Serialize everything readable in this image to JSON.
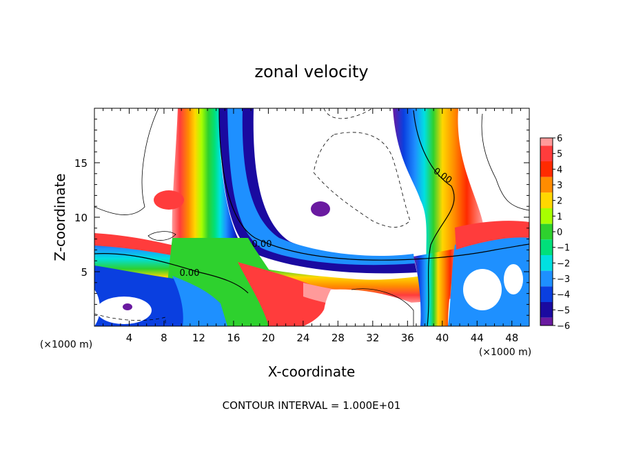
{
  "chart_data": {
    "type": "heatmap",
    "title": "zonal velocity",
    "xlabel": "X-coordinate",
    "ylabel": "Z-coordinate",
    "x_unit_left": "(×1000 m)",
    "x_unit_right": "(×1000 m)",
    "footer": "CONTOUR INTERVAL = 1.000E+01",
    "xlim": [
      0,
      50
    ],
    "ylim": [
      0,
      20
    ],
    "x_ticks": [
      "4",
      "8",
      "12",
      "16",
      "20",
      "24",
      "28",
      "32",
      "36",
      "40",
      "44",
      "48"
    ],
    "y_ticks": [
      "5",
      "10",
      "15"
    ],
    "colorbar": {
      "labels": [
        "6",
        "5",
        "4",
        "3",
        "2",
        "1",
        "0",
        "−1",
        "−2",
        "−3",
        "−4",
        "−5",
        "−6"
      ],
      "colors": [
        "#ff9a9a",
        "#ff3c3c",
        "#ff2a00",
        "#ff8c00",
        "#ffd700",
        "#a8ff00",
        "#2ed12e",
        "#00e07a",
        "#00e0e0",
        "#1e90ff",
        "#0a3fe0",
        "#1a0aa0",
        "#6a1aa0"
      ]
    },
    "contour_labels": [
      "0.00",
      "0.00",
      "0.00"
    ]
  }
}
